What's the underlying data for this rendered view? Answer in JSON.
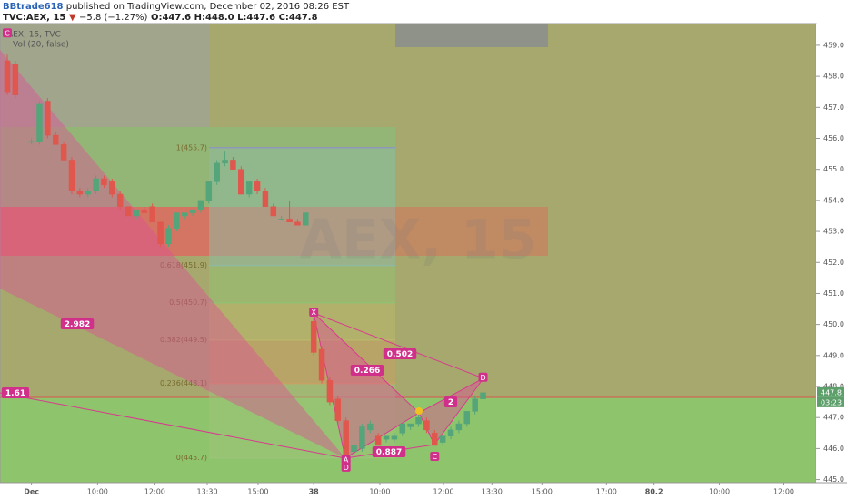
{
  "header": {
    "user": "BBtrade618",
    "published": "published on TradingView.com, December 02, 2016 08:26 EST",
    "symbol": "TVC:AEX, 15",
    "arrow": "▼",
    "change": "−5.8 (−1.27%)",
    "open": "O:447.6",
    "high": "H:448.0",
    "low": "L:447.6",
    "close": "C:447.8"
  },
  "chart_data": {
    "type": "candlestick",
    "legend": "AEX, 15, TVC",
    "indicator": "Vol (20, false)",
    "watermark": "AEX, 15",
    "up_color": "#55a57a",
    "down_color": "#e0574e",
    "x": [
      0,
      1,
      3,
      4,
      5,
      6,
      7,
      8,
      9,
      10,
      11,
      12,
      13,
      14,
      15,
      16,
      17,
      18,
      19,
      20,
      21,
      22,
      23,
      24,
      25,
      26,
      27,
      28,
      29,
      30,
      31,
      32,
      33,
      34,
      35,
      36,
      37,
      38,
      39,
      40,
      41,
      42,
      43,
      44,
      45,
      46,
      47,
      48,
      49,
      50,
      51,
      52,
      53,
      54,
      55,
      56,
      57,
      58,
      59
    ],
    "open": [
      458.5,
      458.4,
      455.9,
      455.9,
      457.2,
      456.1,
      455.8,
      455.3,
      454.3,
      454.2,
      454.3,
      454.7,
      454.6,
      454.2,
      453.8,
      453.5,
      453.7,
      453.8,
      453.3,
      452.6,
      453.1,
      453.5,
      453.6,
      453.7,
      454.0,
      454.6,
      455.2,
      455.3,
      455.0,
      454.2,
      454.6,
      454.3,
      453.8,
      453.4,
      453.4,
      453.3,
      453.2,
      450.1,
      449.2,
      448.2,
      447.6,
      446.9,
      445.9,
      446.0,
      446.6,
      446.4,
      446.3,
      446.3,
      446.5,
      446.7,
      446.8,
      446.9,
      446.5,
      446.2,
      446.4,
      446.6,
      446.8,
      447.2,
      447.6
    ],
    "high": [
      458.7,
      458.5,
      456.0,
      457.2,
      457.3,
      456.2,
      455.9,
      455.4,
      454.4,
      454.4,
      454.8,
      454.8,
      454.7,
      454.3,
      453.8,
      453.7,
      453.8,
      453.9,
      453.3,
      453.2,
      453.6,
      453.6,
      453.7,
      454.0,
      454.6,
      455.3,
      455.6,
      455.4,
      455.1,
      454.6,
      454.7,
      454.4,
      453.9,
      453.5,
      454.0,
      453.4,
      453.6,
      450.2,
      449.3,
      448.3,
      447.7,
      447.0,
      446.1,
      446.8,
      446.9,
      446.5,
      446.4,
      446.5,
      446.8,
      446.8,
      447.1,
      447.0,
      446.6,
      446.4,
      446.7,
      446.9,
      447.2,
      447.7,
      448.0
    ],
    "low": [
      457.4,
      457.3,
      455.8,
      455.8,
      456.0,
      455.8,
      455.3,
      454.2,
      454.1,
      454.1,
      454.2,
      454.4,
      454.1,
      453.7,
      453.5,
      453.4,
      453.6,
      453.3,
      452.5,
      452.5,
      453.0,
      453.4,
      453.5,
      453.6,
      453.9,
      454.5,
      455.1,
      455.0,
      454.2,
      454.1,
      454.2,
      453.8,
      453.5,
      453.4,
      453.3,
      453.2,
      453.2,
      449.0,
      448.1,
      447.4,
      446.8,
      445.7,
      445.8,
      445.9,
      446.5,
      446.1,
      446.2,
      446.2,
      446.4,
      446.6,
      446.7,
      446.5,
      446.1,
      446.1,
      446.3,
      446.5,
      446.7,
      447.1,
      447.6
    ],
    "close": [
      457.5,
      457.4,
      455.9,
      457.1,
      456.1,
      455.8,
      455.3,
      454.3,
      454.2,
      454.3,
      454.7,
      454.5,
      454.2,
      453.8,
      453.5,
      453.7,
      453.6,
      453.3,
      452.6,
      453.1,
      453.6,
      453.6,
      453.7,
      454.0,
      454.6,
      455.2,
      455.3,
      455.0,
      454.2,
      454.6,
      454.3,
      453.8,
      453.5,
      453.4,
      453.3,
      453.2,
      453.6,
      449.1,
      448.2,
      447.5,
      446.9,
      445.8,
      446.1,
      446.7,
      446.8,
      446.1,
      446.4,
      446.4,
      446.8,
      446.8,
      447.0,
      446.6,
      446.1,
      446.4,
      446.6,
      446.8,
      447.2,
      447.6,
      447.8
    ],
    "xlim": [
      -0.9,
      100.3
    ],
    "xticks": [
      {
        "value": 3,
        "label": "Dec"
      },
      {
        "value": 11.2,
        "label": "10:00"
      },
      {
        "value": 18.3,
        "label": "12:00"
      },
      {
        "value": 24.8,
        "label": "13:30"
      },
      {
        "value": 31.1,
        "label": "15:00"
      },
      38,
      {
        "value": 46.2,
        "label": "10:00"
      },
      {
        "value": 54.1,
        "label": "12:00"
      },
      {
        "value": 60.1,
        "label": "13:30"
      },
      {
        "value": 66.3,
        "label": "15:00"
      },
      {
        "value": 74.3,
        "label": "17:00"
      },
      80.2,
      {
        "value": 88.3,
        "label": "10:00"
      },
      {
        "value": 96.3,
        "label": "12:00"
      }
    ],
    "ylim": [
      444.9,
      459.7
    ],
    "yticks": [
      {
        "value": 445,
        "label": "445.0"
      },
      {
        "value": 446,
        "label": "446.0"
      },
      {
        "value": 447,
        "label": "447.0"
      },
      {
        "value": 448,
        "label": "448.0"
      },
      {
        "value": 449,
        "label": "449.0"
      },
      {
        "value": 450,
        "label": "450.0"
      },
      {
        "value": 451,
        "label": "451.0"
      },
      {
        "value": 452,
        "label": "452.0"
      },
      {
        "value": 453,
        "label": "453.0"
      },
      {
        "value": 454,
        "label": "454.0"
      },
      {
        "value": 455,
        "label": "455.0"
      },
      {
        "value": 456,
        "label": "456.0"
      },
      {
        "value": 457,
        "label": "457.0"
      },
      {
        "value": 458,
        "label": "458.0"
      },
      {
        "value": 459,
        "label": "459.0"
      }
    ],
    "last_price": {
      "value": 447.8,
      "label": "447.8"
    },
    "countdown": "03:23",
    "fib_levels": [
      {
        "label": "0(445.7)",
        "value": 445.7,
        "color": "#9cc57a"
      },
      {
        "label": "0.236(448.1)",
        "value": 448.1,
        "color": "#c9a064"
      },
      {
        "label": "0.382(449.5)",
        "value": 449.5,
        "color": "#b9b86a"
      },
      {
        "label": "0.5(450.7)",
        "value": 450.7,
        "color": "#94c071"
      },
      {
        "label": "0.618(451.9)",
        "value": 451.9,
        "color": "#8fb9a0"
      },
      {
        "label": "1(455.7)",
        "value": 455.7,
        "color": "#8f98b8"
      }
    ],
    "pattern_points": [
      {
        "label": "C",
        "x": 0,
        "value": 459.4
      },
      {
        "label": "X",
        "x": 38,
        "value": 450.4
      },
      {
        "label": "A",
        "x": 42,
        "value": 445.64
      },
      {
        "label": "D",
        "x": 42,
        "value": 445.4
      },
      {
        "label": "C",
        "x": 53,
        "value": 445.75
      },
      {
        "label": "D",
        "x": 59,
        "value": 448.3
      }
    ],
    "ratios": [
      "2.982",
      "1.61",
      "0.266",
      "0.502",
      "0.887",
      "2"
    ]
  }
}
